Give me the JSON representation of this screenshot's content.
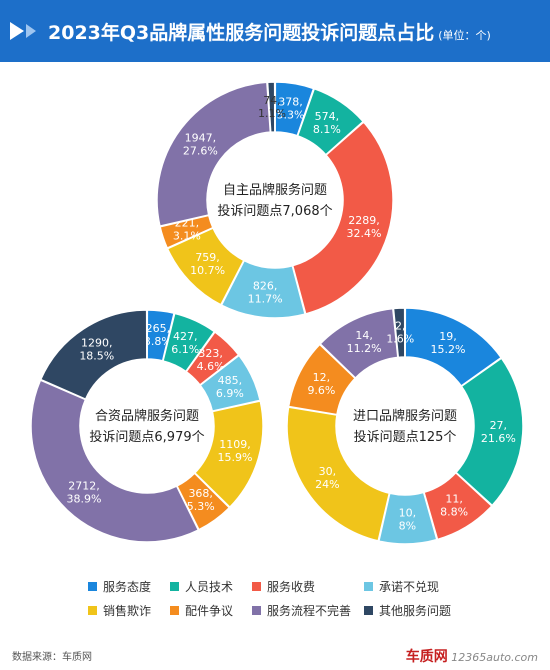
{
  "header": {
    "title": "2023年Q3品牌属性服务问题投诉问题点占比",
    "unit": "(单位：个)"
  },
  "legend": [
    {
      "label": "服务态度",
      "color": "#1a86dd"
    },
    {
      "label": "人员技术",
      "color": "#13b3a0"
    },
    {
      "label": "服务收费",
      "color": "#f25a47"
    },
    {
      "label": "承诺不兑现",
      "color": "#6cc6e3"
    },
    {
      "label": "销售欺诈",
      "color": "#f0c41a"
    },
    {
      "label": "配件争议",
      "color": "#f48c1f"
    },
    {
      "label": "服务流程不完善",
      "color": "#8172a8"
    },
    {
      "label": "其他服务问题",
      "color": "#2f4763"
    }
  ],
  "chart_data": [
    {
      "type": "pie",
      "title_line1": "自主品牌服务问题",
      "title_line2": "投诉问题点7,068个",
      "categories": [
        "服务态度",
        "人员技术",
        "服务收费",
        "承诺不兑现",
        "销售欺诈",
        "配件争议",
        "服务流程不完善",
        "其他服务问题"
      ],
      "values": [
        378,
        574,
        2289,
        826,
        759,
        221,
        1947,
        74
      ],
      "percent_labels": [
        "5.3%",
        "8.1%",
        "32.4%",
        "11.7%",
        "10.7%",
        "3.1%",
        "27.6%",
        "1.1%"
      ],
      "value_labels": [
        "378,",
        "574,",
        "2289,",
        "826,",
        "759,",
        "221,",
        "1947,",
        "74,"
      ]
    },
    {
      "type": "pie",
      "title_line1": "合资品牌服务问题",
      "title_line2": "投诉问题点6,979个",
      "categories": [
        "服务态度",
        "人员技术",
        "服务收费",
        "承诺不兑现",
        "销售欺诈",
        "配件争议",
        "服务流程不完善",
        "其他服务问题"
      ],
      "values": [
        265,
        427,
        323,
        485,
        1109,
        368,
        2712,
        1290
      ],
      "percent_labels": [
        "3.8%",
        "6.1%",
        "4.6%",
        "6.9%",
        "15.9%",
        "5.3%",
        "38.9%",
        "18.5%"
      ],
      "value_labels": [
        "265,",
        "427,",
        "323,",
        "485,",
        "1109,",
        "368,",
        "2712,",
        "1290,"
      ]
    },
    {
      "type": "pie",
      "title_line1": "进口品牌服务问题",
      "title_line2": "投诉问题点125个",
      "categories": [
        "服务态度",
        "人员技术",
        "服务收费",
        "承诺不兑现",
        "销售欺诈",
        "配件争议",
        "服务流程不完善",
        "其他服务问题"
      ],
      "values": [
        19,
        27,
        11,
        10,
        30,
        12,
        14,
        2
      ],
      "percent_labels": [
        "15.2%",
        "21.6%",
        "8.8%",
        "8%",
        "24%",
        "9.6%",
        "11.2%",
        "1.6%"
      ],
      "value_labels": [
        "19,",
        "27,",
        "11,",
        "10,",
        "30,",
        "12,",
        "14,",
        "2,"
      ]
    }
  ],
  "footer": {
    "source": "数据来源：车质网",
    "logo_main": "车质网",
    "logo_sub": "12365auto.com"
  }
}
